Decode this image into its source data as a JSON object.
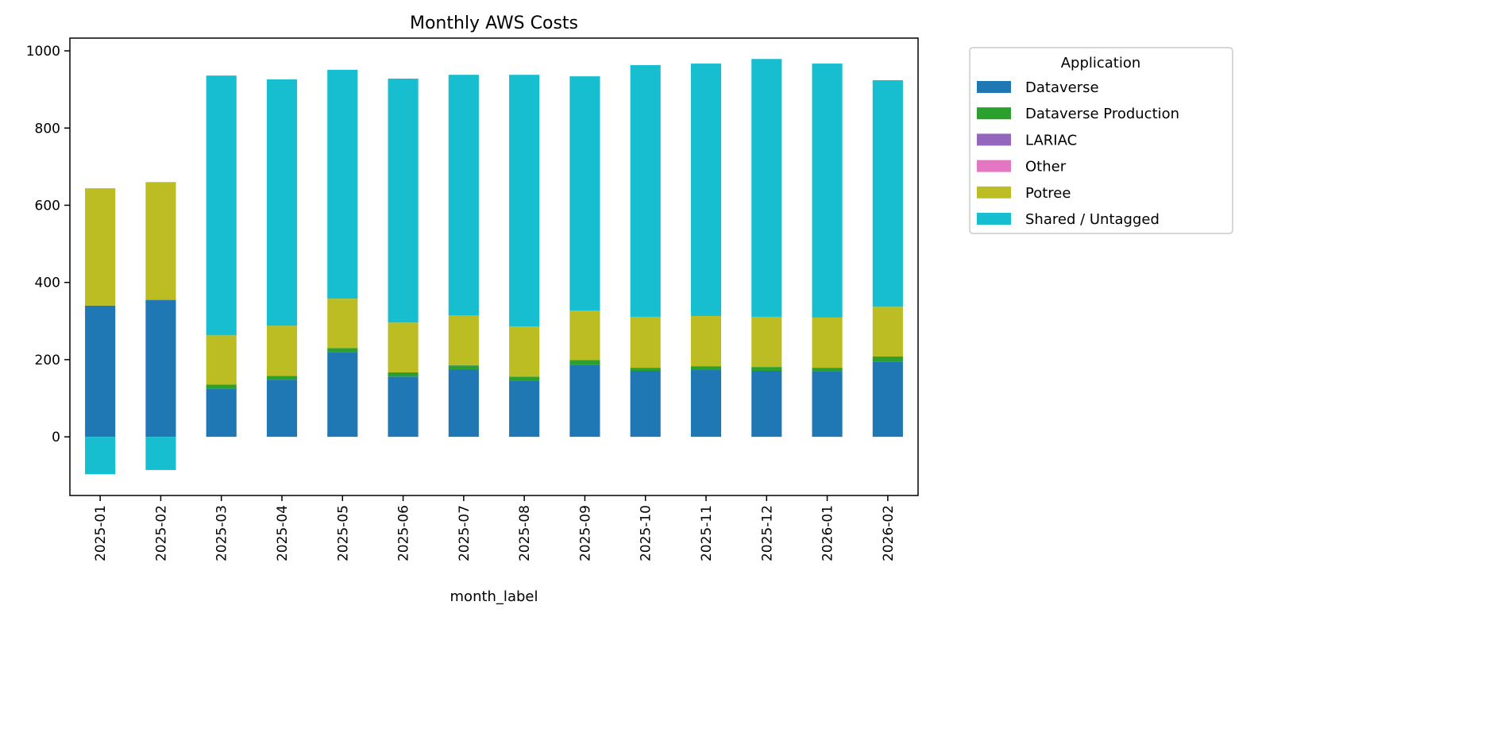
{
  "chart_data": {
    "type": "bar",
    "stacked": true,
    "title": "Monthly AWS Costs",
    "xlabel": "month_label",
    "ylabel": "",
    "ylim": [
      -152,
      1033
    ],
    "yticks": [
      0,
      200,
      400,
      600,
      800,
      1000
    ],
    "grid": false,
    "legend": {
      "title": "Application",
      "placement": "outside-top-right"
    },
    "categories": [
      "2025-01",
      "2025-02",
      "2025-03",
      "2025-04",
      "2025-05",
      "2025-06",
      "2025-07",
      "2025-08",
      "2025-09",
      "2025-10",
      "2025-11",
      "2025-12",
      "2026-01",
      "2026-02"
    ],
    "series": [
      {
        "name": "Dataverse",
        "color": "#1f77b4",
        "values": [
          340,
          354,
          125,
          148,
          220,
          156,
          175,
          146,
          187,
          171,
          173,
          171,
          169,
          195
        ]
      },
      {
        "name": "Dataverse Production",
        "color": "#2ca02c",
        "values": [
          0,
          0,
          10,
          10,
          10,
          11,
          10,
          10,
          12,
          8,
          10,
          10,
          10,
          13
        ]
      },
      {
        "name": "LARIAC",
        "color": "#9467bd",
        "values": [
          0,
          1,
          0,
          0,
          0,
          0,
          1,
          0,
          0,
          0,
          0,
          0,
          0,
          0
        ]
      },
      {
        "name": "Other",
        "color": "#e377c2",
        "values": [
          0,
          0,
          0,
          0,
          0,
          0,
          0,
          0,
          0,
          0,
          0,
          0,
          0,
          0
        ]
      },
      {
        "name": "Potree",
        "color": "#bcbd22",
        "values": [
          304,
          305,
          128,
          130,
          128,
          129,
          129,
          130,
          128,
          132,
          130,
          130,
          130,
          129
        ]
      },
      {
        "name": "Shared / Untagged",
        "color": "#17becf",
        "values": [
          -97,
          -86,
          673,
          638,
          593,
          632,
          623,
          652,
          607,
          652,
          654,
          668,
          658,
          587
        ]
      }
    ]
  }
}
